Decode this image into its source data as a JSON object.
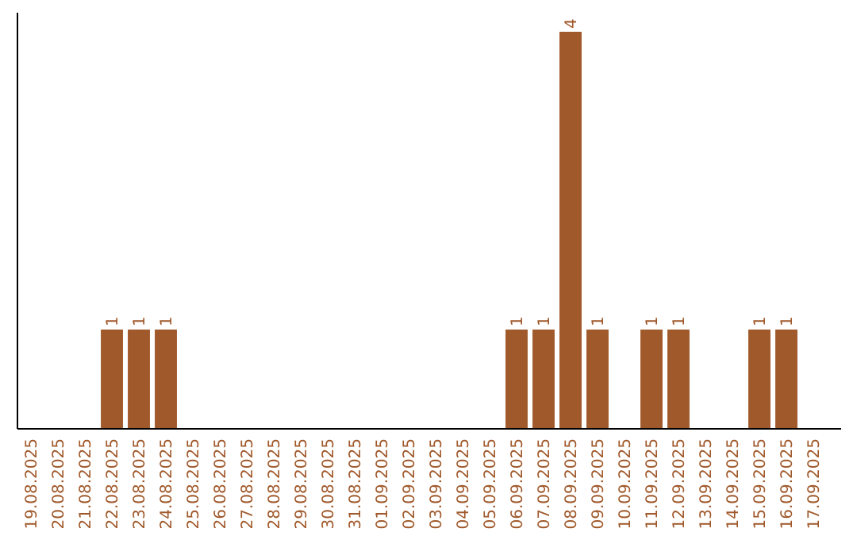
{
  "chart_data": {
    "type": "bar",
    "categories": [
      "19.08.2025",
      "20.08.2025",
      "21.08.2025",
      "22.08.2025",
      "23.08.2025",
      "24.08.2025",
      "25.08.2025",
      "26.08.2025",
      "27.08.2025",
      "28.08.2025",
      "29.08.2025",
      "30.08.2025",
      "31.08.2025",
      "01.09.2025",
      "02.09.2025",
      "03.09.2025",
      "04.09.2025",
      "05.09.2025",
      "06.09.2025",
      "07.09.2025",
      "08.09.2025",
      "09.09.2025",
      "10.09.2025",
      "11.09.2025",
      "12.09.2025",
      "13.09.2025",
      "14.09.2025",
      "15.09.2025",
      "16.09.2025",
      "17.09.2025"
    ],
    "values": [
      0,
      0,
      0,
      1,
      1,
      1,
      0,
      0,
      0,
      0,
      0,
      0,
      0,
      0,
      0,
      0,
      0,
      0,
      1,
      1,
      4,
      1,
      0,
      1,
      1,
      0,
      0,
      1,
      1,
      0
    ],
    "value_labels": [
      null,
      null,
      null,
      "1",
      "1",
      "1",
      null,
      null,
      null,
      null,
      null,
      null,
      null,
      null,
      null,
      null,
      null,
      null,
      "1",
      "1",
      "4",
      "1",
      null,
      "1",
      "1",
      null,
      null,
      "1",
      "1",
      null
    ],
    "color": "#a0592b"
  }
}
